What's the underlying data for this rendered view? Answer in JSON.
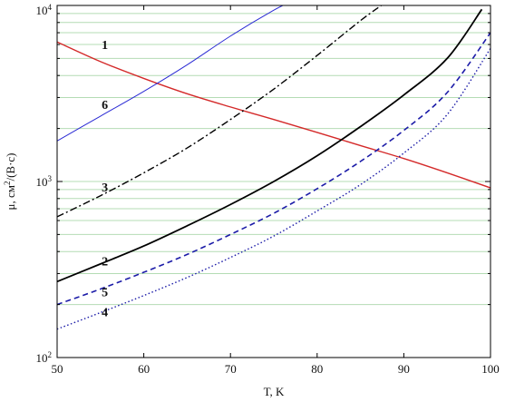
{
  "chart_data": {
    "type": "line",
    "title": "",
    "xlabel": "T, K",
    "ylabel": "μ, см²/(В·с)",
    "ylabel_parts": {
      "base": "μ, см",
      "sup": "2",
      "rest": "/(В·с)"
    },
    "xlim": [
      50,
      100
    ],
    "ylim": [
      100,
      10000
    ],
    "yscale": "log",
    "grid": "horizontal minor lines (green)",
    "x_ticks": [
      {
        "value": 50,
        "label": "50"
      },
      {
        "value": 60,
        "label": "60"
      },
      {
        "value": 70,
        "label": "70"
      },
      {
        "value": 80,
        "label": "80"
      },
      {
        "value": 90,
        "label": "90"
      },
      {
        "value": 100,
        "label": "100"
      }
    ],
    "y_ticks": [
      {
        "value": 100,
        "base": "10",
        "exp": "2"
      },
      {
        "value": 1000,
        "base": "10",
        "exp": "3"
      },
      {
        "value": 10000,
        "base": "10",
        "exp": "4"
      }
    ],
    "colors": {
      "grid": "#b4dcb4",
      "axis": "#000000",
      "red": "#d42a2a",
      "blue": "#2a2ad4",
      "dark_blue": "#1c1ca8",
      "black": "#000000"
    },
    "series": [
      {
        "label": "1",
        "color": "#d42a2a",
        "dash": "",
        "width": 1.4,
        "label_pos": [
          55.5,
          6000
        ],
        "x": [
          50,
          55,
          60,
          65,
          70,
          75,
          80,
          85,
          90,
          95,
          100
        ],
        "y": [
          6200,
          4800,
          3850,
          3150,
          2650,
          2250,
          1900,
          1600,
          1350,
          1120,
          920
        ]
      },
      {
        "label": "6",
        "color": "#2a2ad4",
        "dash": "",
        "width": 1.0,
        "label_pos": [
          55.5,
          2750
        ],
        "x": [
          50,
          55,
          60,
          65,
          70,
          75,
          77
        ],
        "y": [
          1700,
          2350,
          3250,
          4600,
          6700,
          9400,
          10500
        ]
      },
      {
        "label": "3",
        "color": "#000000",
        "dash": "8,3,2,3",
        "width": 1.4,
        "label_pos": [
          55.5,
          930
        ],
        "x": [
          50,
          55,
          60,
          65,
          70,
          75,
          80,
          85,
          88
        ],
        "y": [
          630,
          830,
          1120,
          1550,
          2250,
          3350,
          5200,
          8200,
          10500
        ]
      },
      {
        "label": "2",
        "color": "#000000",
        "dash": "",
        "width": 1.8,
        "label_pos": [
          55.5,
          355
        ],
        "x": [
          50,
          55,
          60,
          65,
          70,
          75,
          80,
          85,
          90,
          95,
          99
        ],
        "y": [
          270,
          340,
          430,
          560,
          740,
          1000,
          1400,
          2050,
          3100,
          5000,
          9500
        ]
      },
      {
        "label": "5",
        "color": "#1c1ca8",
        "dash": "6,4",
        "width": 1.6,
        "label_pos": [
          55.5,
          237
        ],
        "x": [
          50,
          55,
          60,
          65,
          70,
          75,
          80,
          85,
          90,
          95,
          100
        ],
        "y": [
          200,
          245,
          305,
          385,
          500,
          660,
          910,
          1300,
          1950,
          3200,
          7000
        ]
      },
      {
        "label": "4",
        "color": "#1c1ca8",
        "dash": "1.5,2.5",
        "width": 1.4,
        "label_pos": [
          55.5,
          182
        ],
        "x": [
          50,
          55,
          60,
          65,
          70,
          75,
          80,
          85,
          90,
          95,
          100
        ],
        "y": [
          145,
          180,
          225,
          285,
          370,
          490,
          680,
          960,
          1450,
          2400,
          5700
        ]
      }
    ]
  }
}
